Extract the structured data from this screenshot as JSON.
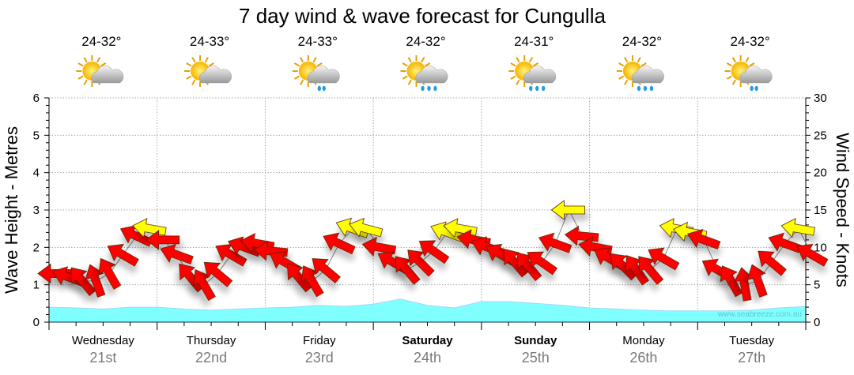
{
  "chart_data": {
    "type": "line",
    "title": "7 day wind & wave forecast for Cungulla",
    "ylabel_left": "Wave Height - Metres",
    "ylabel_right": "Wind Speed - Knots",
    "ylim_left": [
      0,
      6
    ],
    "ylim_right": [
      0,
      30
    ],
    "yticks_left": [
      "0",
      "1",
      "2",
      "3",
      "4",
      "5",
      "6"
    ],
    "yticks_right": [
      "0",
      "5",
      "10",
      "15",
      "20",
      "25",
      "30"
    ],
    "grid": true,
    "days": [
      {
        "name": "Wednesday",
        "date": "21st",
        "bold": false,
        "temp": "24-32°",
        "weather": "partly-cloudy"
      },
      {
        "name": "Thursday",
        "date": "22nd",
        "bold": false,
        "temp": "24-33°",
        "weather": "partly-cloudy"
      },
      {
        "name": "Friday",
        "date": "23rd",
        "bold": false,
        "temp": "24-33°",
        "weather": "light-rain"
      },
      {
        "name": "Saturday",
        "date": "24th",
        "bold": true,
        "temp": "24-32°",
        "weather": "showers"
      },
      {
        "name": "Sunday",
        "date": "25th",
        "bold": true,
        "temp": "24-31°",
        "weather": "showers"
      },
      {
        "name": "Monday",
        "date": "26th",
        "bold": false,
        "temp": "24-32°",
        "weather": "showers"
      },
      {
        "name": "Tuesday",
        "date": "27th",
        "bold": false,
        "temp": "24-32°",
        "weather": "light-rain"
      }
    ],
    "series": [
      {
        "name": "Wave height (m)",
        "color": "#80ffff",
        "values": [
          0.4,
          0.38,
          0.35,
          0.4,
          0.4,
          0.35,
          0.32,
          0.35,
          0.38,
          0.4,
          0.45,
          0.42,
          0.48,
          0.62,
          0.45,
          0.38,
          0.55,
          0.55,
          0.5,
          0.45,
          0.38,
          0.35,
          0.32,
          0.3,
          0.3,
          0.3,
          0.32,
          0.38,
          0.42
        ]
      },
      {
        "name": "Wind speed (kt)",
        "high_color": "#ffff00",
        "low_color": "#ff0000",
        "high_threshold": 12,
        "values": [
          6.5,
          6,
          5.5,
          5.5,
          6.5,
          9,
          11.5,
          12.5,
          11,
          9,
          6,
          5,
          6.5,
          9,
          10,
          10.5,
          9.5,
          8,
          6,
          5.5,
          7,
          10.5,
          12.5,
          12.5,
          10,
          8,
          7,
          8,
          9.5,
          12,
          12.5,
          11,
          10,
          9,
          8,
          7.5,
          8,
          10.5,
          15,
          11.5,
          10,
          8.5,
          7.5,
          7,
          7,
          8.5,
          12.5,
          12,
          11,
          7,
          5.5,
          5,
          5.5,
          8,
          10.5,
          12.5,
          9
        ],
        "direction_deg": [
          90,
          110,
          140,
          160,
          150,
          120,
          115,
          100,
          90,
          110,
          140,
          150,
          130,
          120,
          110,
          100,
          95,
          120,
          140,
          150,
          130,
          115,
          110,
          105,
          100,
          120,
          140,
          135,
          125,
          110,
          100,
          100,
          110,
          120,
          140,
          140,
          125,
          110,
          90,
          95,
          100,
          120,
          135,
          145,
          140,
          120,
          100,
          100,
          110,
          120,
          150,
          170,
          160,
          130,
          110,
          100,
          120
        ]
      }
    ],
    "watermark": "www.seabreeze.com.au"
  }
}
